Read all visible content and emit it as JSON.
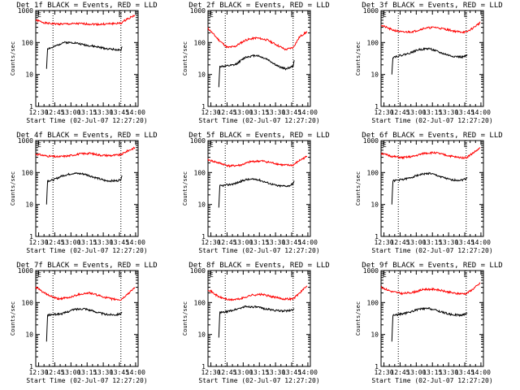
{
  "figure": {
    "xlabel": "Start Time (02-Jul-07 12:27:20)",
    "ylabel": "Counts/sec",
    "x_tick_labels": [
      "12:30",
      "12:45",
      "13:00",
      "13:15",
      "13:30",
      "13:45",
      "14:00"
    ],
    "y_tick_labels": [
      "1",
      "10",
      "100",
      "1000"
    ],
    "marker_label": "E"
  },
  "colors": {
    "events": "#000000",
    "lld": "#ff0000",
    "axes": "#000000"
  },
  "chart_data": [
    {
      "type": "line",
      "title": "Det 1f BLACK = Events, RED = LLD",
      "xlabel": "Start Time (02-Jul-07 12:27:20)",
      "ylabel": "Counts/sec",
      "x_range_min": [
        0,
        95
      ],
      "y_range": [
        1,
        1000
      ],
      "y_scale": "log",
      "x_tick_labels": [
        "12:30",
        "12:45",
        "13:00",
        "13:15",
        "13:30",
        "13:45",
        "14:00"
      ],
      "event_marker_min": [
        16,
        79
      ],
      "series": [
        {
          "name": "LLD",
          "color": "#ff0000",
          "x": [
            0,
            10,
            20,
            30,
            40,
            50,
            60,
            70,
            79,
            85,
            92
          ],
          "values": [
            500,
            400,
            380,
            380,
            390,
            380,
            370,
            390,
            400,
            550,
            720
          ]
        },
        {
          "name": "Events",
          "color": "#000000",
          "x": [
            10,
            11,
            16,
            25,
            35,
            45,
            55,
            65,
            75,
            79,
            80
          ],
          "values": [
            15,
            65,
            70,
            100,
            100,
            85,
            75,
            65,
            60,
            55,
            75
          ]
        }
      ]
    },
    {
      "type": "line",
      "title": "Det 2f BLACK = Events, RED = LLD",
      "xlabel": "Start Time (02-Jul-07 12:27:20)",
      "ylabel": "Counts/sec",
      "x_range_min": [
        0,
        95
      ],
      "y_range": [
        1,
        1000
      ],
      "y_scale": "log",
      "x_tick_labels": [
        "12:30",
        "12:45",
        "13:00",
        "13:15",
        "13:30",
        "13:45",
        "14:00"
      ],
      "event_marker_min": [
        16,
        79
      ],
      "series": [
        {
          "name": "LLD",
          "color": "#ff0000",
          "x": [
            0,
            10,
            18,
            25,
            35,
            45,
            55,
            65,
            72,
            79,
            85,
            92
          ],
          "values": [
            280,
            120,
            70,
            75,
            120,
            140,
            120,
            80,
            60,
            70,
            150,
            220
          ]
        },
        {
          "name": "Events",
          "color": "#000000",
          "x": [
            10,
            11,
            16,
            25,
            35,
            45,
            55,
            65,
            72,
            79,
            80
          ],
          "values": [
            4,
            18,
            18,
            20,
            35,
            40,
            30,
            18,
            15,
            18,
            28
          ]
        }
      ]
    },
    {
      "type": "line",
      "title": "Det 3f BLACK = Events, RED = LLD",
      "xlabel": "Start Time (02-Jul-07 12:27:20)",
      "ylabel": "Counts/sec",
      "x_range_min": [
        0,
        95
      ],
      "y_range": [
        1,
        1000
      ],
      "y_scale": "log",
      "x_tick_labels": [
        "12:30",
        "12:45",
        "13:00",
        "13:15",
        "13:30",
        "13:45",
        "14:00"
      ],
      "event_marker_min": [
        16,
        79
      ],
      "series": [
        {
          "name": "LLD",
          "color": "#ff0000",
          "x": [
            0,
            10,
            20,
            30,
            40,
            50,
            60,
            70,
            79,
            85,
            92
          ],
          "values": [
            350,
            250,
            210,
            220,
            280,
            300,
            260,
            220,
            210,
            280,
            420
          ]
        },
        {
          "name": "Events",
          "color": "#000000",
          "x": [
            10,
            11,
            16,
            25,
            35,
            45,
            55,
            65,
            75,
            79,
            80
          ],
          "values": [
            10,
            35,
            38,
            45,
            60,
            65,
            48,
            38,
            35,
            38,
            42
          ]
        }
      ]
    },
    {
      "type": "line",
      "title": "Det 4f BLACK = Events, RED = LLD",
      "xlabel": "Start Time (02-Jul-07 12:27:20)",
      "ylabel": "Counts/sec",
      "x_range_min": [
        0,
        95
      ],
      "y_range": [
        1,
        1000
      ],
      "y_scale": "log",
      "x_tick_labels": [
        "12:30",
        "12:45",
        "13:00",
        "13:15",
        "13:30",
        "13:45",
        "14:00"
      ],
      "event_marker_min": [
        16,
        79
      ],
      "series": [
        {
          "name": "LLD",
          "color": "#ff0000",
          "x": [
            0,
            10,
            20,
            30,
            40,
            50,
            60,
            70,
            79,
            85,
            92
          ],
          "values": [
            380,
            330,
            310,
            330,
            380,
            400,
            350,
            340,
            360,
            470,
            600
          ]
        },
        {
          "name": "Events",
          "color": "#000000",
          "x": [
            10,
            11,
            16,
            25,
            35,
            45,
            55,
            65,
            75,
            79,
            80
          ],
          "values": [
            10,
            55,
            58,
            80,
            95,
            90,
            70,
            55,
            55,
            60,
            80
          ]
        }
      ]
    },
    {
      "type": "line",
      "title": "Det 5f BLACK = Events, RED = LLD",
      "xlabel": "Start Time (02-Jul-07 12:27:20)",
      "ylabel": "Counts/sec",
      "x_range_min": [
        0,
        95
      ],
      "y_range": [
        1,
        1000
      ],
      "y_scale": "log",
      "x_tick_labels": [
        "12:30",
        "12:45",
        "13:00",
        "13:15",
        "13:30",
        "13:45",
        "14:00"
      ],
      "event_marker_min": [
        16,
        79
      ],
      "series": [
        {
          "name": "LLD",
          "color": "#ff0000",
          "x": [
            0,
            10,
            20,
            30,
            40,
            50,
            60,
            70,
            79,
            85,
            92
          ],
          "values": [
            250,
            200,
            160,
            170,
            220,
            230,
            200,
            170,
            170,
            240,
            320
          ]
        },
        {
          "name": "Events",
          "color": "#000000",
          "x": [
            10,
            11,
            16,
            25,
            35,
            45,
            55,
            65,
            75,
            79,
            80
          ],
          "values": [
            8,
            38,
            40,
            45,
            60,
            62,
            48,
            38,
            38,
            45,
            55
          ]
        }
      ]
    },
    {
      "type": "line",
      "title": "Det 6f BLACK = Events, RED = LLD",
      "xlabel": "Start Time (02-Jul-07 12:27:20)",
      "ylabel": "Counts/sec",
      "x_range_min": [
        0,
        95
      ],
      "y_range": [
        1,
        1000
      ],
      "y_scale": "log",
      "x_tick_labels": [
        "12:30",
        "12:45",
        "13:00",
        "13:15",
        "13:30",
        "13:45",
        "14:00"
      ],
      "event_marker_min": [
        16,
        79
      ],
      "series": [
        {
          "name": "LLD",
          "color": "#ff0000",
          "x": [
            0,
            10,
            20,
            30,
            40,
            50,
            60,
            70,
            79,
            85,
            92
          ],
          "values": [
            400,
            320,
            290,
            320,
            400,
            420,
            350,
            300,
            290,
            400,
            580
          ]
        },
        {
          "name": "Events",
          "color": "#000000",
          "x": [
            10,
            11,
            16,
            25,
            35,
            45,
            55,
            65,
            75,
            79,
            80
          ],
          "values": [
            10,
            55,
            58,
            65,
            85,
            95,
            75,
            58,
            58,
            65,
            70
          ]
        }
      ]
    },
    {
      "type": "line",
      "title": "Det 7f BLACK = Events, RED = LLD",
      "xlabel": "Start Time (02-Jul-07 12:27:20)",
      "ylabel": "Counts/sec",
      "x_range_min": [
        0,
        95
      ],
      "y_range": [
        1,
        1000
      ],
      "y_scale": "log",
      "x_tick_labels": [
        "12:30",
        "12:45",
        "13:00",
        "13:15",
        "13:30",
        "13:45",
        "14:00"
      ],
      "event_marker_min": [
        16,
        79
      ],
      "series": [
        {
          "name": "LLD",
          "color": "#ff0000",
          "x": [
            0,
            10,
            20,
            30,
            40,
            50,
            60,
            70,
            79,
            85,
            92
          ],
          "values": [
            300,
            180,
            130,
            140,
            180,
            200,
            160,
            130,
            120,
            180,
            300
          ]
        },
        {
          "name": "Events",
          "color": "#000000",
          "x": [
            10,
            11,
            16,
            25,
            35,
            45,
            55,
            65,
            75,
            79,
            80
          ],
          "values": [
            6,
            40,
            42,
            45,
            60,
            65,
            52,
            42,
            42,
            45,
            50
          ]
        }
      ]
    },
    {
      "type": "line",
      "title": "Det 8f BLACK = Events, RED = LLD",
      "xlabel": "Start Time (02-Jul-07 12:27:20)",
      "ylabel": "Counts/sec",
      "x_range_min": [
        0,
        95
      ],
      "y_range": [
        1,
        1000
      ],
      "y_scale": "log",
      "x_tick_labels": [
        "12:30",
        "12:45",
        "13:00",
        "13:15",
        "13:30",
        "13:45",
        "14:00"
      ],
      "event_marker_min": [
        16,
        79
      ],
      "series": [
        {
          "name": "LLD",
          "color": "#ff0000",
          "x": [
            0,
            10,
            20,
            30,
            40,
            50,
            60,
            70,
            79,
            85,
            92
          ],
          "values": [
            260,
            150,
            120,
            130,
            170,
            180,
            150,
            130,
            130,
            200,
            330
          ]
        },
        {
          "name": "Events",
          "color": "#000000",
          "x": [
            10,
            11,
            16,
            25,
            35,
            45,
            55,
            65,
            75,
            79,
            80
          ],
          "values": [
            8,
            48,
            50,
            60,
            75,
            72,
            62,
            55,
            55,
            60,
            65
          ]
        }
      ]
    },
    {
      "type": "line",
      "title": "Det 9f BLACK = Events, RED = LLD",
      "xlabel": "Start Time (02-Jul-07 12:27:20)",
      "ylabel": "Counts/sec",
      "x_range_min": [
        0,
        95
      ],
      "y_range": [
        1,
        1000
      ],
      "y_scale": "log",
      "x_tick_labels": [
        "12:30",
        "12:45",
        "13:00",
        "13:15",
        "13:30",
        "13:45",
        "14:00"
      ],
      "event_marker_min": [
        16,
        79
      ],
      "series": [
        {
          "name": "LLD",
          "color": "#ff0000",
          "x": [
            0,
            10,
            20,
            30,
            40,
            50,
            60,
            70,
            79,
            85,
            92
          ],
          "values": [
            300,
            220,
            190,
            210,
            260,
            260,
            220,
            190,
            190,
            260,
            400
          ]
        },
        {
          "name": "Events",
          "color": "#000000",
          "x": [
            10,
            11,
            16,
            25,
            35,
            45,
            55,
            65,
            75,
            79,
            80
          ],
          "values": [
            6,
            40,
            42,
            48,
            62,
            65,
            52,
            42,
            40,
            45,
            48
          ]
        }
      ]
    }
  ]
}
